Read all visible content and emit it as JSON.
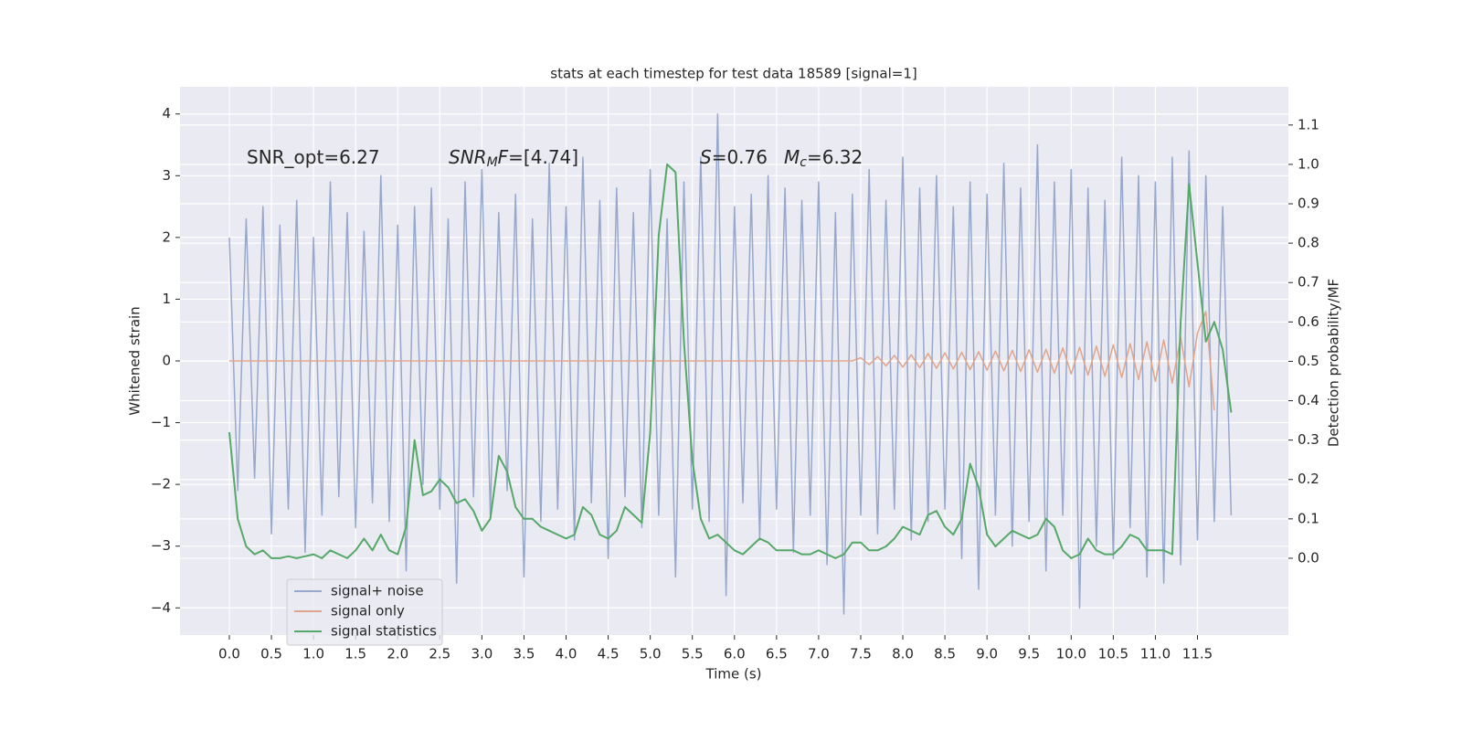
{
  "chart_data": {
    "type": "line",
    "title": "stats at each timestep for test data 18589 [signal=1]",
    "xlabel": "Time (s)",
    "ylabel": "Whitened strain",
    "y2label": "Detection probability/MF",
    "xlim": [
      -0.586,
      12.58
    ],
    "ylim": [
      -4.44,
      4.44
    ],
    "y2lim": [
      -0.195,
      1.197
    ],
    "xticks": [
      {
        "value": 0,
        "label": "0.0"
      },
      0.5,
      {
        "value": 1,
        "label": "1.0"
      },
      1.5,
      {
        "value": 2,
        "label": "2.0"
      },
      2.5,
      {
        "value": 3,
        "label": "3.0"
      },
      3.5,
      {
        "value": 4,
        "label": "4.0"
      },
      4.5,
      {
        "value": 5,
        "label": "5.0"
      },
      5.5,
      {
        "value": 6,
        "label": "6.0"
      },
      6.5,
      {
        "value": 7,
        "label": "7.0"
      },
      7.5,
      {
        "value": 8,
        "label": "8.0"
      },
      8.5,
      {
        "value": 9,
        "label": "9.0"
      },
      9.5,
      {
        "value": 10,
        "label": "10.0"
      },
      10.5,
      {
        "value": 11,
        "label": "11.0"
      },
      11.5
    ],
    "yticks": [
      {
        "value": -4,
        "label": "−4"
      },
      {
        "value": -3,
        "label": "−3"
      },
      {
        "value": -2,
        "label": "−2"
      },
      {
        "value": -1,
        "label": "−1"
      },
      0,
      1,
      2,
      3,
      4
    ],
    "y2ticks": [
      {
        "value": 0,
        "label": "0.0"
      },
      0.1,
      0.2,
      0.3,
      0.4,
      0.5,
      0.6,
      0.7,
      0.8,
      0.9,
      {
        "value": 1,
        "label": "1.0"
      },
      1.1
    ],
    "grid": true,
    "legend": "lower left",
    "annotations": [
      {
        "parts": [
          {
            "text": "SNR_opt=6.27"
          }
        ]
      },
      {
        "parts": [
          {
            "text": "SNR",
            "style": "italic"
          },
          {
            "text": "M",
            "style": "sub"
          },
          {
            "text": "F",
            "style": "italic"
          },
          {
            "text": "=[4.74]"
          }
        ]
      },
      {
        "parts": [
          {
            "text": "S",
            "style": "italic"
          },
          {
            "text": "=0.76"
          }
        ]
      },
      {
        "parts": [
          {
            "text": "M",
            "style": "italic"
          },
          {
            "text": "c",
            "style": "sub"
          },
          {
            "text": "=6.32"
          }
        ]
      }
    ],
    "x": [
      0,
      0.1,
      0.2,
      0.3,
      0.4,
      0.5,
      0.6,
      0.7,
      0.8,
      0.9,
      1,
      1.1,
      1.2,
      1.3,
      1.4,
      1.5,
      1.6,
      1.7,
      1.8,
      1.9,
      2,
      2.1,
      2.2,
      2.3,
      2.4,
      2.5,
      2.6,
      2.7,
      2.8,
      2.9,
      3,
      3.1,
      3.2,
      3.3,
      3.4,
      3.5,
      3.6,
      3.7,
      3.8,
      3.9,
      4,
      4.1,
      4.2,
      4.3,
      4.4,
      4.5,
      4.6,
      4.7,
      4.8,
      4.9,
      5,
      5.1,
      5.2,
      5.3,
      5.4,
      5.5,
      5.6,
      5.7,
      5.8,
      5.9,
      6,
      6.1,
      6.2,
      6.3,
      6.4,
      6.5,
      6.6,
      6.7,
      6.8,
      6.9,
      7,
      7.1,
      7.2,
      7.3,
      7.4,
      7.5,
      7.6,
      7.7,
      7.8,
      7.9,
      8,
      8.1,
      8.2,
      8.3,
      8.4,
      8.5,
      8.6,
      8.7,
      8.8,
      8.9,
      9,
      9.1,
      9.2,
      9.3,
      9.4,
      9.5,
      9.6,
      9.7,
      9.8,
      9.9,
      10,
      10.1,
      10.2,
      10.3,
      10.4,
      10.5,
      10.6,
      10.7,
      10.8,
      10.9,
      11,
      11.1,
      11.2,
      11.3,
      11.4,
      11.5,
      11.6,
      11.7,
      11.8,
      11.9
    ],
    "series": [
      {
        "name": "signal+ noise",
        "color": "#97a8cc",
        "values": [
          2.0,
          -2.1,
          2.3,
          -1.9,
          2.5,
          -2.8,
          2.2,
          -2.4,
          2.6,
          -3.1,
          2.0,
          -2.5,
          2.9,
          -2.2,
          2.4,
          -2.7,
          2.1,
          -2.3,
          3.0,
          -2.6,
          2.2,
          -3.4,
          2.5,
          -2.0,
          2.8,
          -2.4,
          2.3,
          -3.6,
          2.9,
          -2.2,
          3.1,
          -2.5,
          2.4,
          -2.1,
          2.7,
          -3.5,
          2.3,
          -2.6,
          3.2,
          -2.4,
          2.5,
          -2.9,
          3.3,
          -2.3,
          2.6,
          -3.2,
          2.8,
          -2.2,
          2.4,
          -2.7,
          3.1,
          -2.5,
          2.3,
          -3.5,
          2.9,
          -2.4,
          3.3,
          -2.6,
          4.0,
          -3.8,
          2.5,
          -2.3,
          2.7,
          -2.9,
          3.0,
          -2.4,
          2.8,
          -3.1,
          2.6,
          -2.5,
          2.9,
          -3.3,
          2.4,
          -4.1,
          2.7,
          -2.5,
          3.1,
          -2.8,
          2.6,
          -2.4,
          3.3,
          -2.9,
          2.8,
          -2.6,
          3.0,
          -2.4,
          2.5,
          -3.2,
          2.9,
          -3.7,
          2.7,
          -2.5,
          3.2,
          -3.0,
          2.8,
          -2.6,
          3.5,
          -3.4,
          2.9,
          -2.5,
          3.1,
          -4.0,
          2.8,
          -3.0,
          2.6,
          -3.2,
          3.3,
          -2.7,
          3.0,
          -3.5,
          2.9,
          -3.6,
          3.3,
          -3.3,
          3.4,
          -2.9,
          3.0,
          -2.6,
          2.5,
          -2.5
        ]
      },
      {
        "name": "signal only",
        "color": "#e0a58a",
        "x": [
          0,
          7.4,
          7.5,
          7.6,
          7.7,
          7.8,
          7.9,
          8,
          8.1,
          8.2,
          8.3,
          8.4,
          8.5,
          8.6,
          8.7,
          8.8,
          8.9,
          9,
          9.1,
          9.2,
          9.3,
          9.4,
          9.5,
          9.6,
          9.7,
          9.8,
          9.9,
          10,
          10.1,
          10.2,
          10.3,
          10.4,
          10.5,
          10.6,
          10.7,
          10.8,
          10.9,
          11,
          11.1,
          11.2,
          11.3,
          11.4,
          11.5,
          11.6,
          11.7
        ],
        "values": [
          0,
          0,
          0.05,
          -0.06,
          0.07,
          -0.08,
          0.09,
          -0.1,
          0.1,
          -0.11,
          0.12,
          -0.12,
          0.13,
          -0.13,
          0.14,
          -0.14,
          0.15,
          -0.15,
          0.16,
          -0.16,
          0.17,
          -0.17,
          0.18,
          -0.18,
          0.19,
          -0.2,
          0.21,
          -0.21,
          0.22,
          -0.23,
          0.24,
          -0.25,
          0.26,
          -0.27,
          0.28,
          -0.3,
          0.31,
          -0.33,
          0.34,
          -0.36,
          0.38,
          -0.42,
          0.45,
          0.8,
          -0.8
        ]
      },
      {
        "name": "signal statistics",
        "color": "#55a868",
        "axis": "y2",
        "values": [
          0.32,
          0.1,
          0.03,
          0.01,
          0.02,
          0.0,
          0.0,
          0.005,
          0.0,
          0.005,
          0.01,
          0.0,
          0.02,
          0.01,
          0.0,
          0.02,
          0.05,
          0.02,
          0.06,
          0.02,
          0.01,
          0.08,
          0.3,
          0.16,
          0.17,
          0.2,
          0.18,
          0.14,
          0.15,
          0.12,
          0.07,
          0.1,
          0.26,
          0.22,
          0.13,
          0.1,
          0.1,
          0.08,
          0.07,
          0.06,
          0.05,
          0.06,
          0.13,
          0.11,
          0.06,
          0.05,
          0.07,
          0.13,
          0.11,
          0.09,
          0.32,
          0.82,
          1.0,
          0.98,
          0.55,
          0.25,
          0.1,
          0.05,
          0.06,
          0.04,
          0.02,
          0.01,
          0.03,
          0.05,
          0.04,
          0.02,
          0.02,
          0.02,
          0.01,
          0.01,
          0.02,
          0.01,
          0.0,
          0.01,
          0.04,
          0.04,
          0.02,
          0.02,
          0.03,
          0.05,
          0.08,
          0.07,
          0.06,
          0.11,
          0.12,
          0.08,
          0.06,
          0.1,
          0.24,
          0.18,
          0.06,
          0.03,
          0.05,
          0.07,
          0.06,
          0.05,
          0.06,
          0.1,
          0.08,
          0.02,
          0.0,
          0.01,
          0.05,
          0.02,
          0.01,
          0.01,
          0.03,
          0.06,
          0.05,
          0.02,
          0.02,
          0.02,
          0.01,
          0.6,
          0.95,
          0.75,
          0.55,
          0.6,
          0.53,
          0.37
        ]
      }
    ]
  }
}
